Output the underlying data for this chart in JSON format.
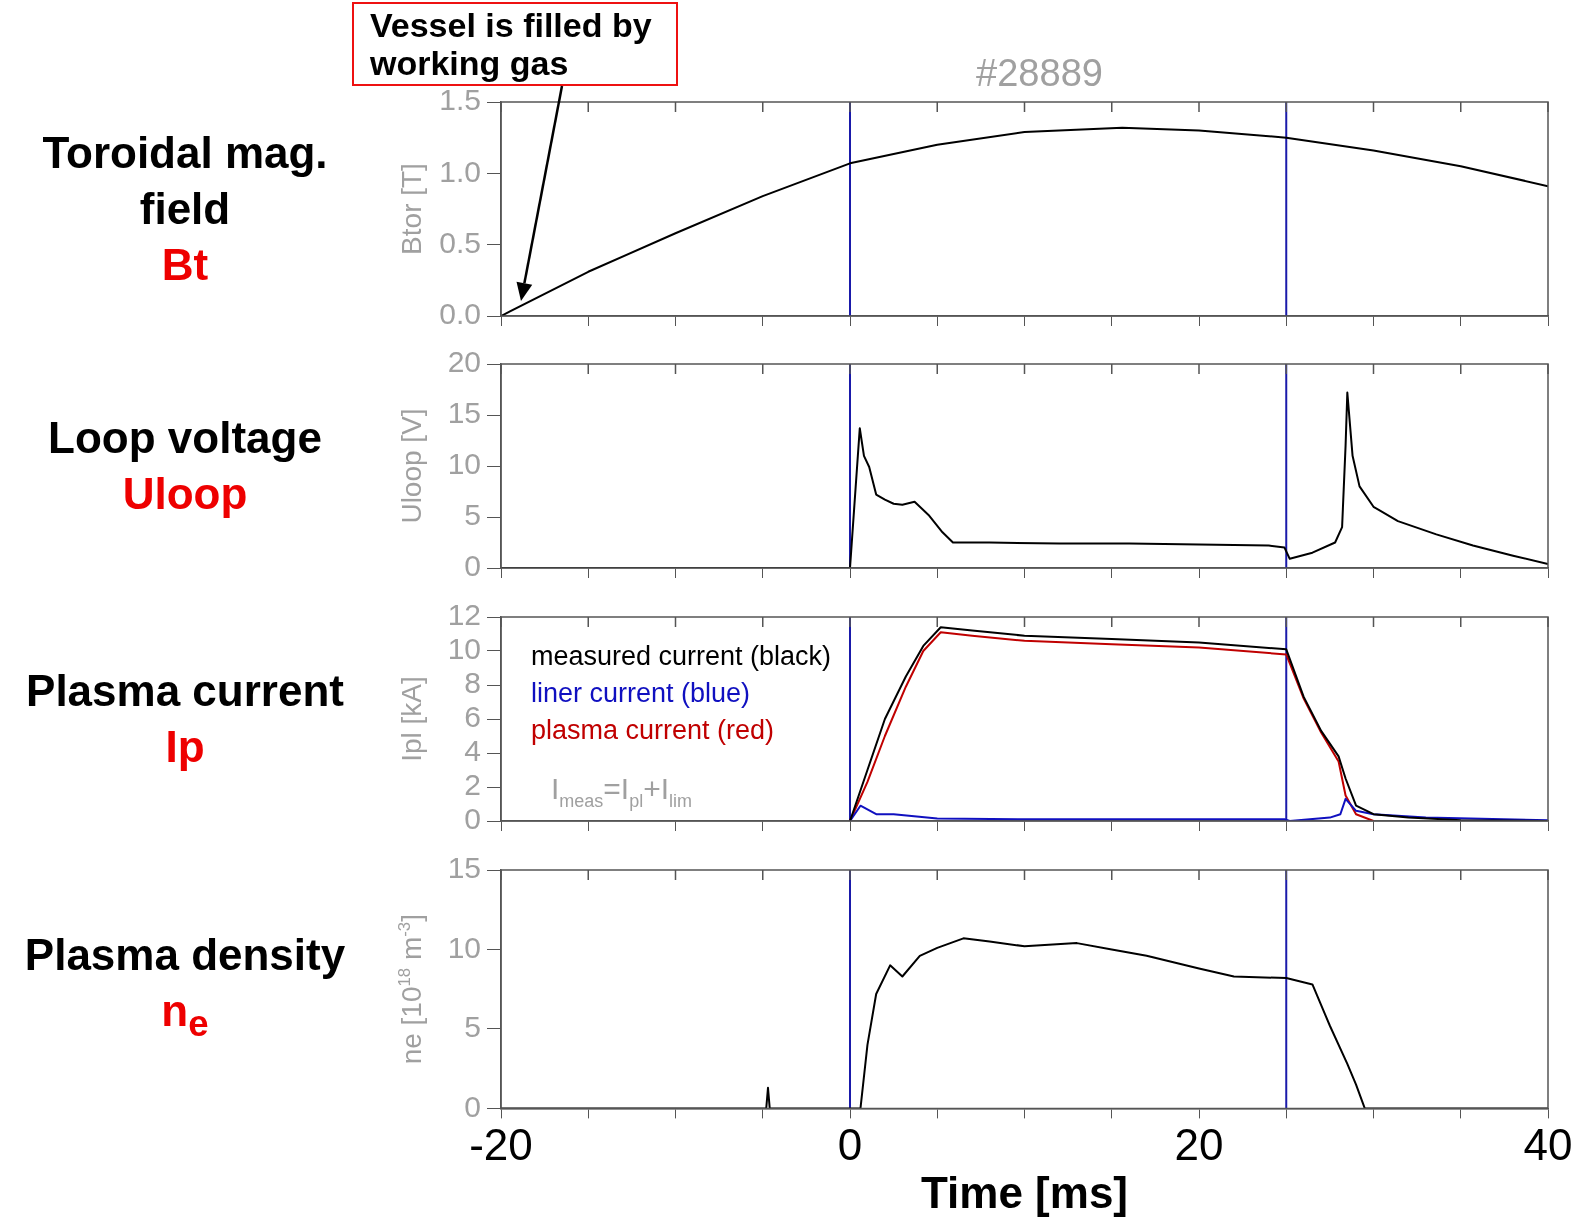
{
  "chart_data": [
    {
      "type": "line",
      "title": "#28889",
      "ylabel": "Btor [T]",
      "xlim": [
        -20,
        40
      ],
      "xticks": [
        -20,
        {
          "value": -15,
          "label": null
        },
        {
          "value": -10,
          "label": null
        },
        {
          "value": -5,
          "label": null
        },
        0,
        {
          "value": 5,
          "label": null
        },
        {
          "value": 10,
          "label": null
        },
        {
          "value": 15,
          "label": null
        },
        20,
        {
          "value": 25,
          "label": null
        },
        {
          "value": 30,
          "label": null
        },
        {
          "value": 35,
          "label": null
        },
        40
      ],
      "ylim": [
        0,
        1.5
      ],
      "yticks": [
        {
          "value": 0,
          "label": "0.0"
        },
        {
          "value": 0.5,
          "label": "0.5"
        },
        {
          "value": 1,
          "label": "1.0"
        },
        {
          "value": 1.5,
          "label": "1.5"
        }
      ],
      "tick_labels": "y",
      "marker": "none",
      "legend": false,
      "series": [
        {
          "color": "#000000",
          "x": [
            -20,
            -15,
            -10,
            -5,
            0,
            5,
            10,
            15.6,
            20,
            25,
            30,
            35,
            40
          ],
          "values": [
            0,
            0.31,
            0.58,
            0.84,
            1.07,
            1.2,
            1.29,
            1.32,
            1.3,
            1.25,
            1.16,
            1.05,
            0.91
          ]
        }
      ],
      "ref_lines": [
        {
          "axis": "x",
          "value": 0,
          "color": "#1a1aaa"
        },
        {
          "axis": "x",
          "value": 25,
          "color": "#1a1aaa"
        }
      ],
      "annotations": [
        "Toroidal mag. field",
        "Bt",
        "Vessel is filled by working gas"
      ]
    },
    {
      "type": "line",
      "ylabel": "Uloop [V]",
      "xlim": [
        -20,
        40
      ],
      "xticks": [
        -20,
        {
          "value": -15,
          "label": null
        },
        {
          "value": -10,
          "label": null
        },
        {
          "value": -5,
          "label": null
        },
        0,
        {
          "value": 5,
          "label": null
        },
        {
          "value": 10,
          "label": null
        },
        {
          "value": 15,
          "label": null
        },
        20,
        {
          "value": 25,
          "label": null
        },
        {
          "value": 30,
          "label": null
        },
        {
          "value": 35,
          "label": null
        },
        40
      ],
      "ylim": [
        0,
        20
      ],
      "yticks": [
        0,
        5,
        10,
        15,
        20
      ],
      "tick_labels": "y",
      "marker": "none",
      "legend": false,
      "series": [
        {
          "color": "#000000",
          "x": [
            -20,
            -0.1,
            0,
            0.56,
            0.8,
            1.1,
            1.5,
            2,
            2.5,
            3,
            3.7,
            4.5,
            5.3,
            5.9,
            8,
            12,
            16,
            20,
            24,
            24.9,
            25.2,
            26.5,
            27.8,
            28.2,
            28.4,
            28.5,
            28.8,
            29.2,
            30,
            31.4,
            33.6,
            35.7,
            38,
            40
          ],
          "values": [
            0,
            0,
            0,
            13.7,
            11,
            9.9,
            7.2,
            6.7,
            6.3,
            6.2,
            6.5,
            5.2,
            3.5,
            2.5,
            2.5,
            2.4,
            2.4,
            2.3,
            2.2,
            2.0,
            0.9,
            1.5,
            2.5,
            4,
            12,
            17.2,
            11,
            8,
            6,
            4.6,
            3.3,
            2.2,
            1.2,
            0.4
          ]
        }
      ],
      "ref_lines": [
        {
          "axis": "x",
          "value": 0,
          "color": "#1a1aaa"
        },
        {
          "axis": "x",
          "value": 25,
          "color": "#1a1aaa"
        }
      ],
      "annotations": [
        "Loop voltage",
        "Uloop"
      ]
    },
    {
      "type": "line",
      "ylabel": "Ipl [kA]",
      "xlim": [
        -20,
        40
      ],
      "xticks": [
        -20,
        {
          "value": -15,
          "label": null
        },
        {
          "value": -10,
          "label": null
        },
        {
          "value": -5,
          "label": null
        },
        0,
        {
          "value": 5,
          "label": null
        },
        {
          "value": 10,
          "label": null
        },
        {
          "value": 15,
          "label": null
        },
        20,
        {
          "value": 25,
          "label": null
        },
        {
          "value": 30,
          "label": null
        },
        {
          "value": 35,
          "label": null
        },
        40
      ],
      "ylim": [
        0,
        12
      ],
      "yticks": [
        0,
        2,
        4,
        6,
        8,
        10,
        12
      ],
      "tick_labels": "y",
      "marker": "none",
      "legend": "top left",
      "series": [
        {
          "name": "measured current (black)",
          "color": "#000000",
          "x": [
            0,
            1,
            2,
            3.2,
            4.2,
            5.2,
            7,
            10,
            15,
            20,
            25,
            26,
            27,
            28,
            28.4,
            29,
            30,
            32,
            35,
            40
          ],
          "values": [
            0,
            3,
            6,
            8.5,
            10.3,
            11.4,
            11.2,
            10.9,
            10.7,
            10.5,
            10.1,
            7.3,
            5.3,
            3.8,
            2.5,
            0.9,
            0.4,
            0.2,
            0.05,
            0
          ]
        },
        {
          "name": "liner current (blue)",
          "color": "#1010c0",
          "x": [
            0,
            0.6,
            1.5,
            2.5,
            5,
            10,
            20,
            24.9,
            25.2,
            27.5,
            28.1,
            28.4,
            29,
            30,
            33,
            40
          ],
          "values": [
            0,
            0.9,
            0.4,
            0.4,
            0.15,
            0.1,
            0.1,
            0.1,
            0,
            0.2,
            0.4,
            1.3,
            0.6,
            0.4,
            0.2,
            0.05
          ]
        },
        {
          "name": "plasma current (red)",
          "color": "#c00000",
          "x": [
            0,
            1,
            2,
            3.2,
            4.2,
            5.2,
            7,
            10,
            15,
            20,
            25,
            26,
            27,
            28,
            28.4,
            29,
            30
          ],
          "values": [
            0,
            2.3,
            5,
            7.9,
            10,
            11.1,
            10.9,
            10.6,
            10.4,
            10.2,
            9.8,
            7.2,
            5.2,
            3.5,
            1.5,
            0.4,
            0
          ]
        }
      ],
      "ref_lines": [
        {
          "axis": "x",
          "value": 0,
          "color": "#1a1aaa"
        },
        {
          "axis": "x",
          "value": 25,
          "color": "#1a1aaa"
        }
      ],
      "annotations": [
        "Plasma current",
        "Ip",
        "I$_{meas}$=I$_{pl}$+I$_{lim}$"
      ]
    },
    {
      "type": "line",
      "ylabel": "ne [10$^{18}$ m$^{-3}$]",
      "xlabel": "Time [ms]",
      "xlim": [
        -20,
        40
      ],
      "xticks": [
        -20,
        {
          "value": -15,
          "label": null
        },
        {
          "value": -10,
          "label": null
        },
        {
          "value": -5,
          "label": null
        },
        0,
        {
          "value": 5,
          "label": null
        },
        {
          "value": 10,
          "label": null
        },
        {
          "value": 15,
          "label": null
        },
        20,
        {
          "value": 25,
          "label": null
        },
        {
          "value": 30,
          "label": null
        },
        {
          "value": 35,
          "label": null
        },
        40
      ],
      "ylim": [
        0,
        15
      ],
      "yticks": [
        0,
        5,
        10,
        15
      ],
      "marker": "none",
      "legend": false,
      "series": [
        {
          "color": "#000000",
          "x": [
            -20,
            -4.8,
            -4.7,
            -4.6,
            0.6,
            1,
            1.5,
            2.3,
            3,
            4,
            5,
            6.5,
            8,
            10,
            13,
            15,
            17,
            20,
            22,
            25,
            26.5,
            27.5,
            28.5,
            29,
            29.5,
            40
          ],
          "values": [
            0,
            0,
            1.3,
            0,
            0,
            4,
            7.2,
            9,
            8.3,
            9.6,
            10.1,
            10.7,
            10.5,
            10.2,
            10.4,
            10,
            9.6,
            8.8,
            8.3,
            8.2,
            7.8,
            5.2,
            2.8,
            1.5,
            0,
            0
          ]
        }
      ],
      "ref_lines": [
        {
          "axis": "x",
          "value": 0,
          "color": "#1a1aaa"
        },
        {
          "axis": "x",
          "value": 25,
          "color": "#1a1aaa"
        }
      ],
      "annotations": [
        "Plasma density",
        "n$_{e}$"
      ]
    }
  ]
}
